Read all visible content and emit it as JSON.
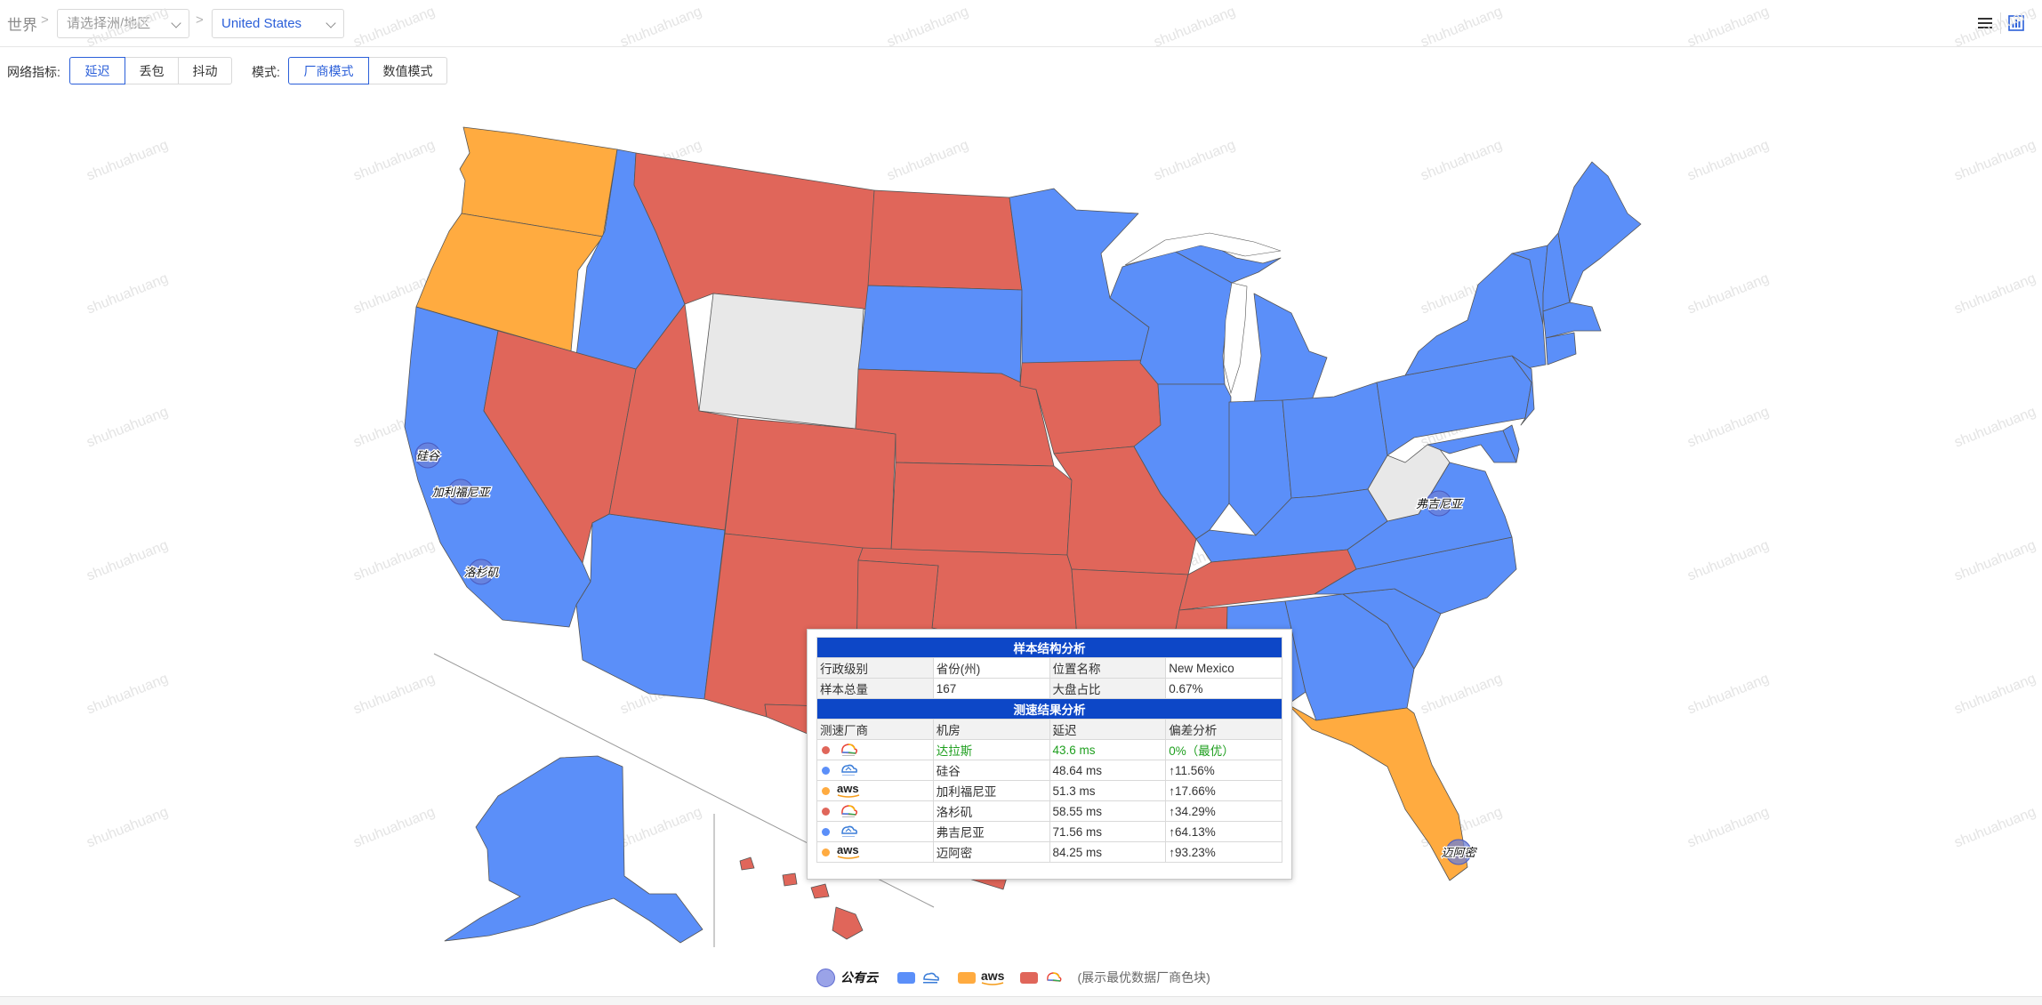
{
  "breadcrumb": {
    "root": "世界",
    "separator": ">",
    "region_placeholder": "请选择洲/地区",
    "country_value": "United States"
  },
  "filters": {
    "metric_label": "网络指标:",
    "metric_options": [
      "延迟",
      "丢包",
      "抖动"
    ],
    "metric_selected": "延迟",
    "mode_label": "模式:",
    "mode_options": [
      "厂商模式",
      "数值模式"
    ],
    "mode_selected": "厂商模式"
  },
  "toolbar": {
    "icons": [
      "list-icon",
      "bar-chart-icon"
    ]
  },
  "watermark_text": "shuhuahuang",
  "colors": {
    "blue": "#5b8ff9",
    "orange": "#ffab40",
    "red": "#e0665a",
    "gray": "#e8e8e8",
    "accent": "#2b5fd9",
    "header_blue": "#0d47c7"
  },
  "map": {
    "city_markers": [
      "硅谷",
      "加利福尼亚",
      "洛杉矶",
      "弗吉尼亚",
      "迈阿密"
    ]
  },
  "tooltip": {
    "section1_title": "样本结构分析",
    "row1": [
      "行政级别",
      "省份(州)",
      "位置名称",
      "New Mexico"
    ],
    "row2": [
      "样本总量",
      "167",
      "大盘占比",
      "0.67%"
    ],
    "section2_title": "测速结果分析",
    "columns": [
      "测速厂商",
      "机房",
      "延迟",
      "偏差分析"
    ],
    "rows": [
      {
        "vendor": "google-cloud",
        "color": "#e0665a",
        "datacenter": "达拉斯",
        "latency": "43.6 ms",
        "deviation": "0%（最优）",
        "best": true
      },
      {
        "vendor": "alibaba-cloud",
        "color": "#5b8ff9",
        "datacenter": "硅谷",
        "latency": "48.64 ms",
        "deviation": "↑11.56%",
        "best": false
      },
      {
        "vendor": "aws",
        "color": "#ffab40",
        "datacenter": "加利福尼亚",
        "latency": "51.3 ms",
        "deviation": "↑17.66%",
        "best": false
      },
      {
        "vendor": "google-cloud",
        "color": "#e0665a",
        "datacenter": "洛杉矶",
        "latency": "58.55 ms",
        "deviation": "↑34.29%",
        "best": false
      },
      {
        "vendor": "alibaba-cloud",
        "color": "#5b8ff9",
        "datacenter": "弗吉尼亚",
        "latency": "71.56 ms",
        "deviation": "↑64.13%",
        "best": false
      },
      {
        "vendor": "aws",
        "color": "#ffab40",
        "datacenter": "迈阿密",
        "latency": "84.25 ms",
        "deviation": "↑93.23%",
        "best": false
      }
    ]
  },
  "legend": {
    "cloud_label": "公有云",
    "aws_text": "aws",
    "note": "(展示最优数据厂商色块)"
  }
}
